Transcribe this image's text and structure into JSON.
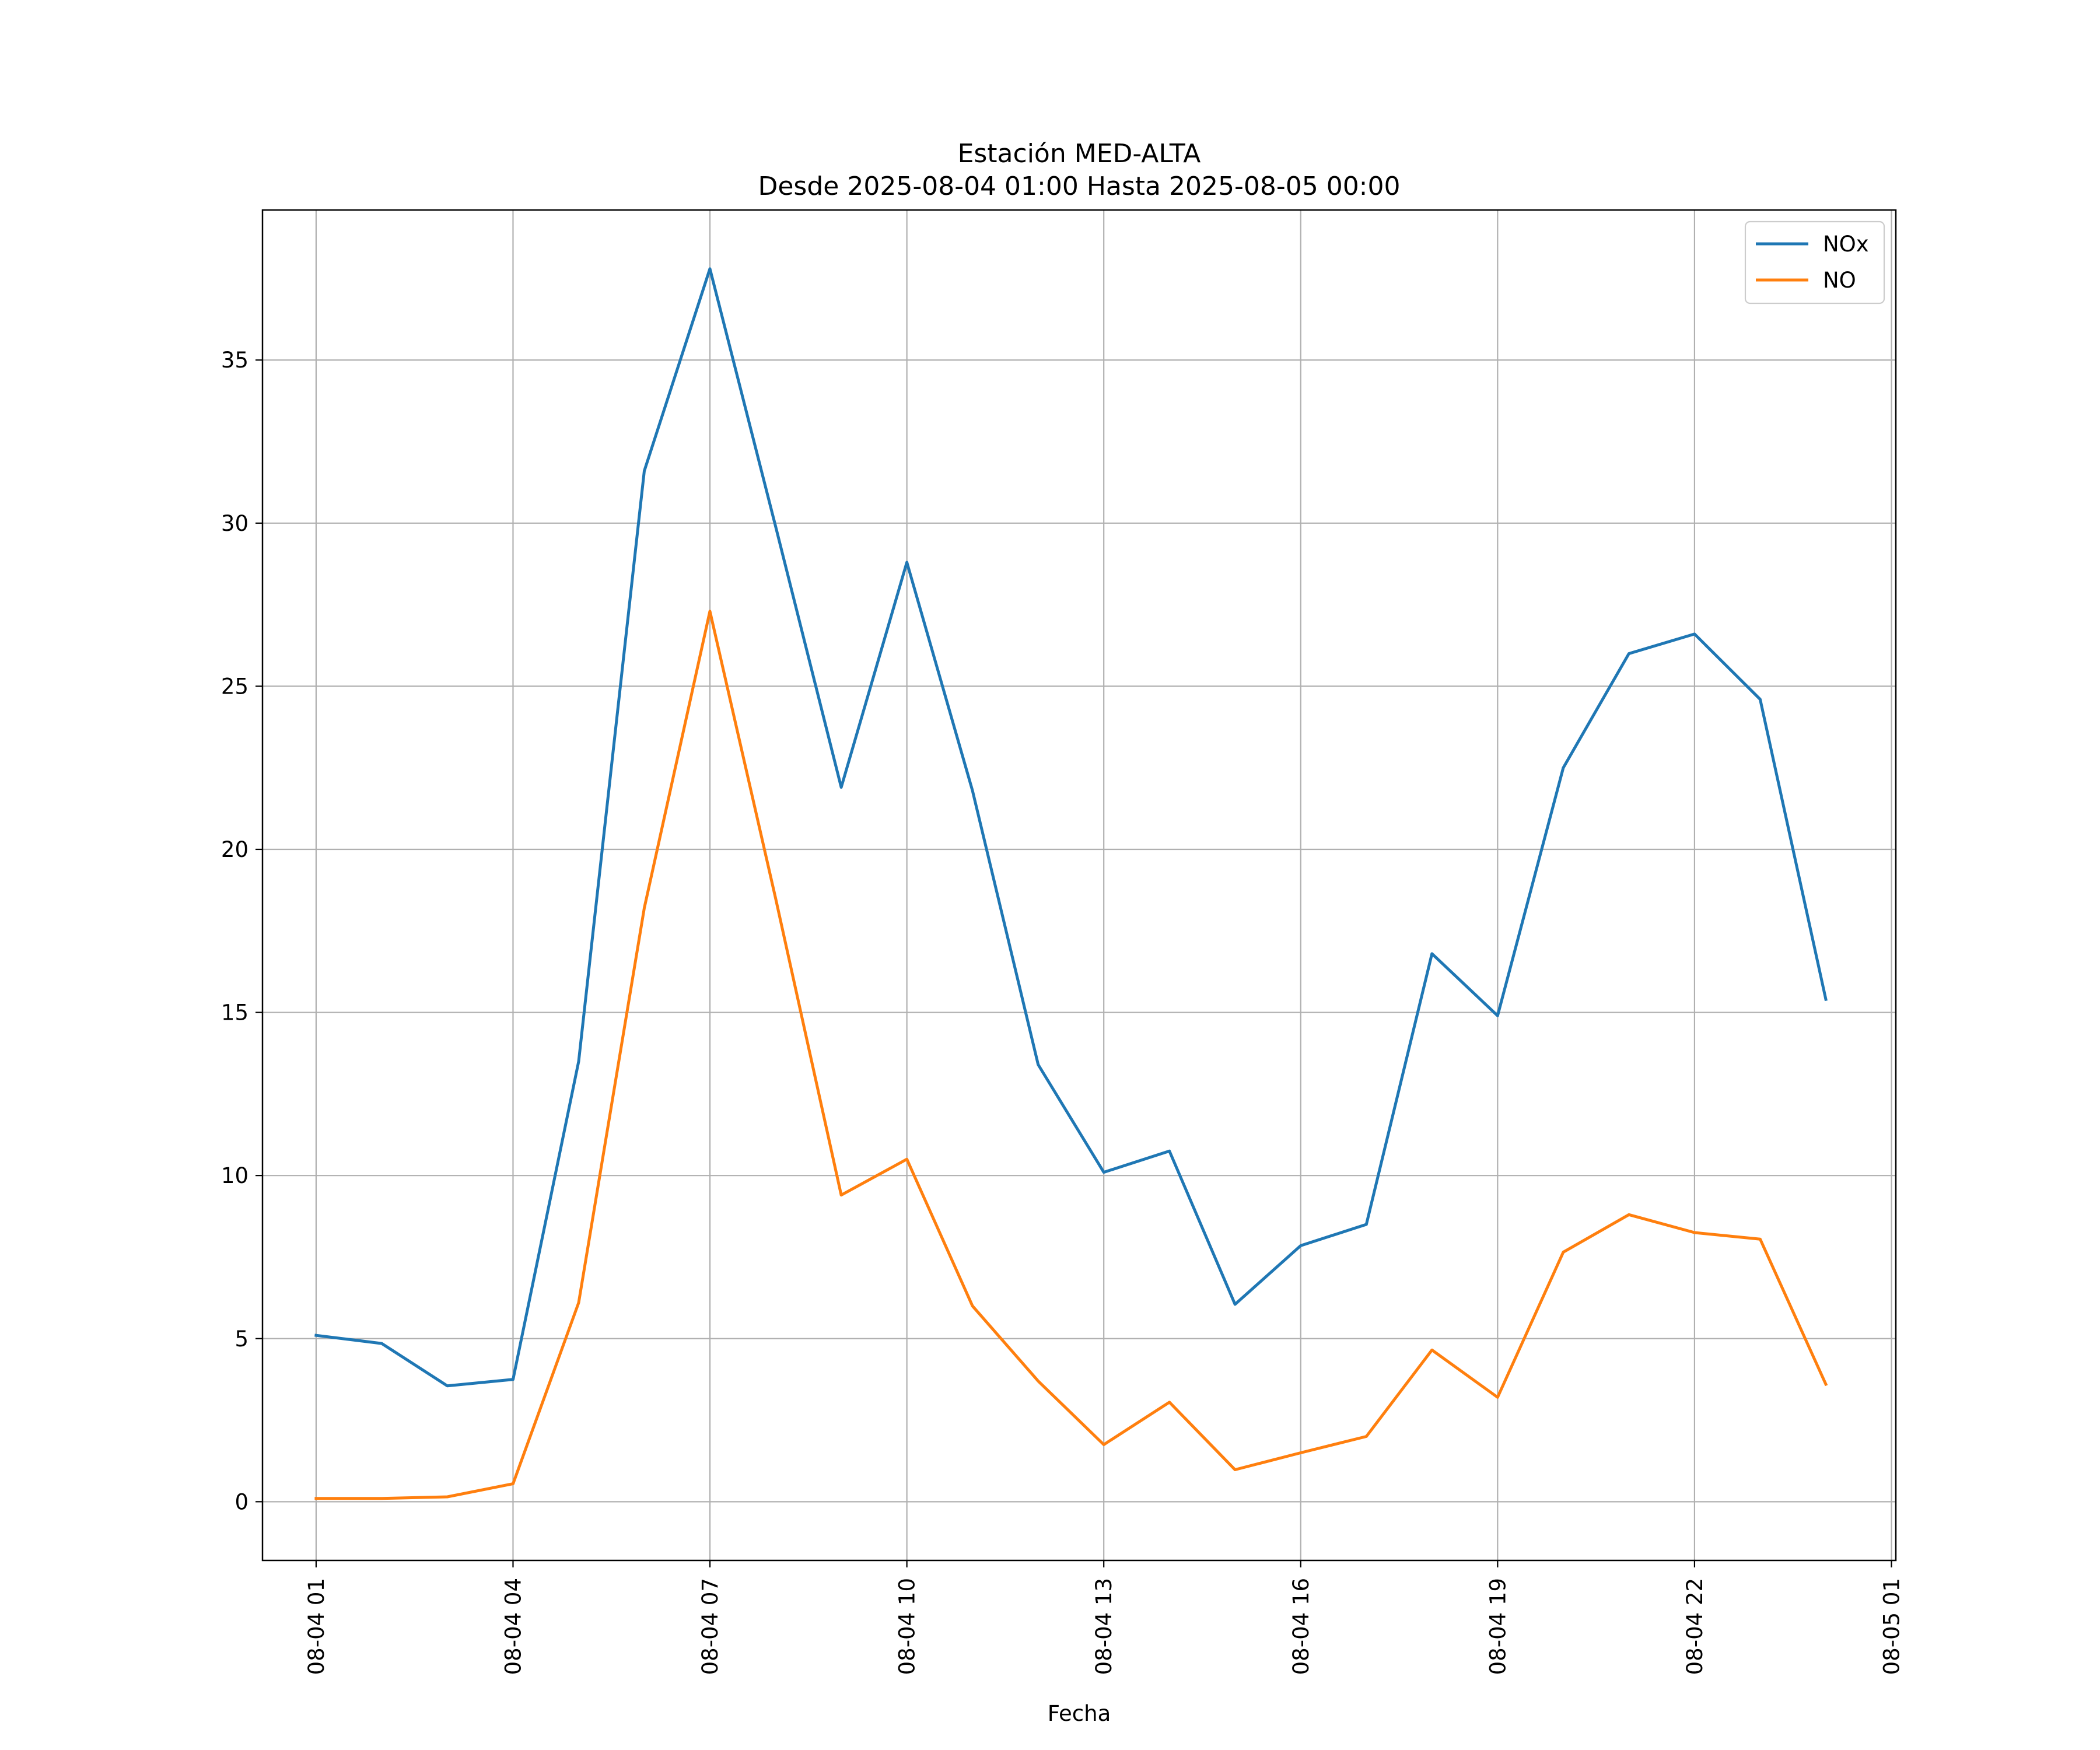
{
  "chart_data": {
    "type": "line",
    "title": "Estación MED-ALTA",
    "subtitle": "Desde 2025-08-04 01:00 Hasta 2025-08-05 00:00",
    "xlabel": "Fecha",
    "ylabel": "",
    "x": [
      "2025-08-04 01:00",
      "2025-08-04 02:00",
      "2025-08-04 03:00",
      "2025-08-04 04:00",
      "2025-08-04 05:00",
      "2025-08-04 06:00",
      "2025-08-04 07:00",
      "2025-08-04 08:00",
      "2025-08-04 09:00",
      "2025-08-04 10:00",
      "2025-08-04 11:00",
      "2025-08-04 12:00",
      "2025-08-04 13:00",
      "2025-08-04 14:00",
      "2025-08-04 15:00",
      "2025-08-04 16:00",
      "2025-08-04 17:00",
      "2025-08-04 18:00",
      "2025-08-04 19:00",
      "2025-08-04 20:00",
      "2025-08-04 21:00",
      "2025-08-04 22:00",
      "2025-08-04 23:00",
      "2025-08-05 00:00"
    ],
    "series": [
      {
        "name": "NOx",
        "color": "#1f77b4",
        "values": [
          5.1,
          4.85,
          3.55,
          3.75,
          13.5,
          31.6,
          37.8,
          29.9,
          21.9,
          28.8,
          21.8,
          13.4,
          10.1,
          10.75,
          6.05,
          7.85,
          8.5,
          16.8,
          14.9,
          22.5,
          26.0,
          26.6,
          24.6,
          15.4
        ]
      },
      {
        "name": "NO",
        "color": "#ff7f0e",
        "values": [
          0.1,
          0.1,
          0.15,
          0.55,
          6.1,
          18.2,
          27.3,
          18.5,
          9.4,
          10.5,
          6.0,
          3.7,
          1.75,
          3.05,
          0.98,
          1.5,
          2.0,
          4.65,
          3.2,
          7.65,
          8.8,
          8.25,
          8.05,
          3.6
        ]
      }
    ],
    "xticks": [
      "08-04 01",
      "08-04 04",
      "08-04 07",
      "08-04 10",
      "08-04 13",
      "08-04 16",
      "08-04 19",
      "08-04 22",
      "08-05 01"
    ],
    "yticks": [
      "0",
      "5",
      "10",
      "15",
      "20",
      "25",
      "30",
      "35"
    ],
    "ylim": [
      -1.8,
      39.6
    ],
    "xlim": [
      "2025-08-04 00:11",
      "2025-08-05 01:04"
    ],
    "grid": true,
    "legend": "top-right"
  }
}
